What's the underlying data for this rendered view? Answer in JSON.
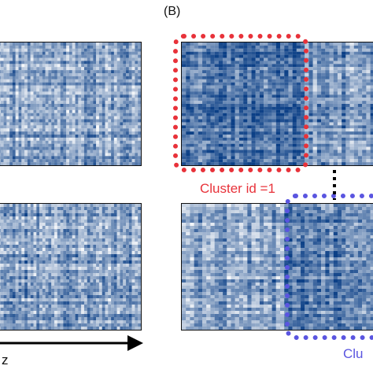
{
  "panel_b_label": "(B)",
  "cluster_1_label": "Cluster id =1",
  "cluster_2_label_partial": "Clu",
  "axis_label": "z",
  "colors": {
    "cluster_1": "#e8323a",
    "cluster_2": "#5a55e0",
    "heat_low": "#ffffff",
    "heat_high": "#0b3f86",
    "axis": "#000000"
  },
  "heatmaps": [
    {
      "name": "left-top-heatmap",
      "seed": 11,
      "bias": 0.45
    },
    {
      "name": "left-bottom-heatmap",
      "seed": 23,
      "bias": 0.45
    },
    {
      "name": "right-top-heatmap",
      "seed": 37,
      "bias": 0.5,
      "dark_region": "left"
    },
    {
      "name": "right-bottom-heatmap",
      "seed": 53,
      "bias": 0.45,
      "dark_region": "right"
    }
  ]
}
